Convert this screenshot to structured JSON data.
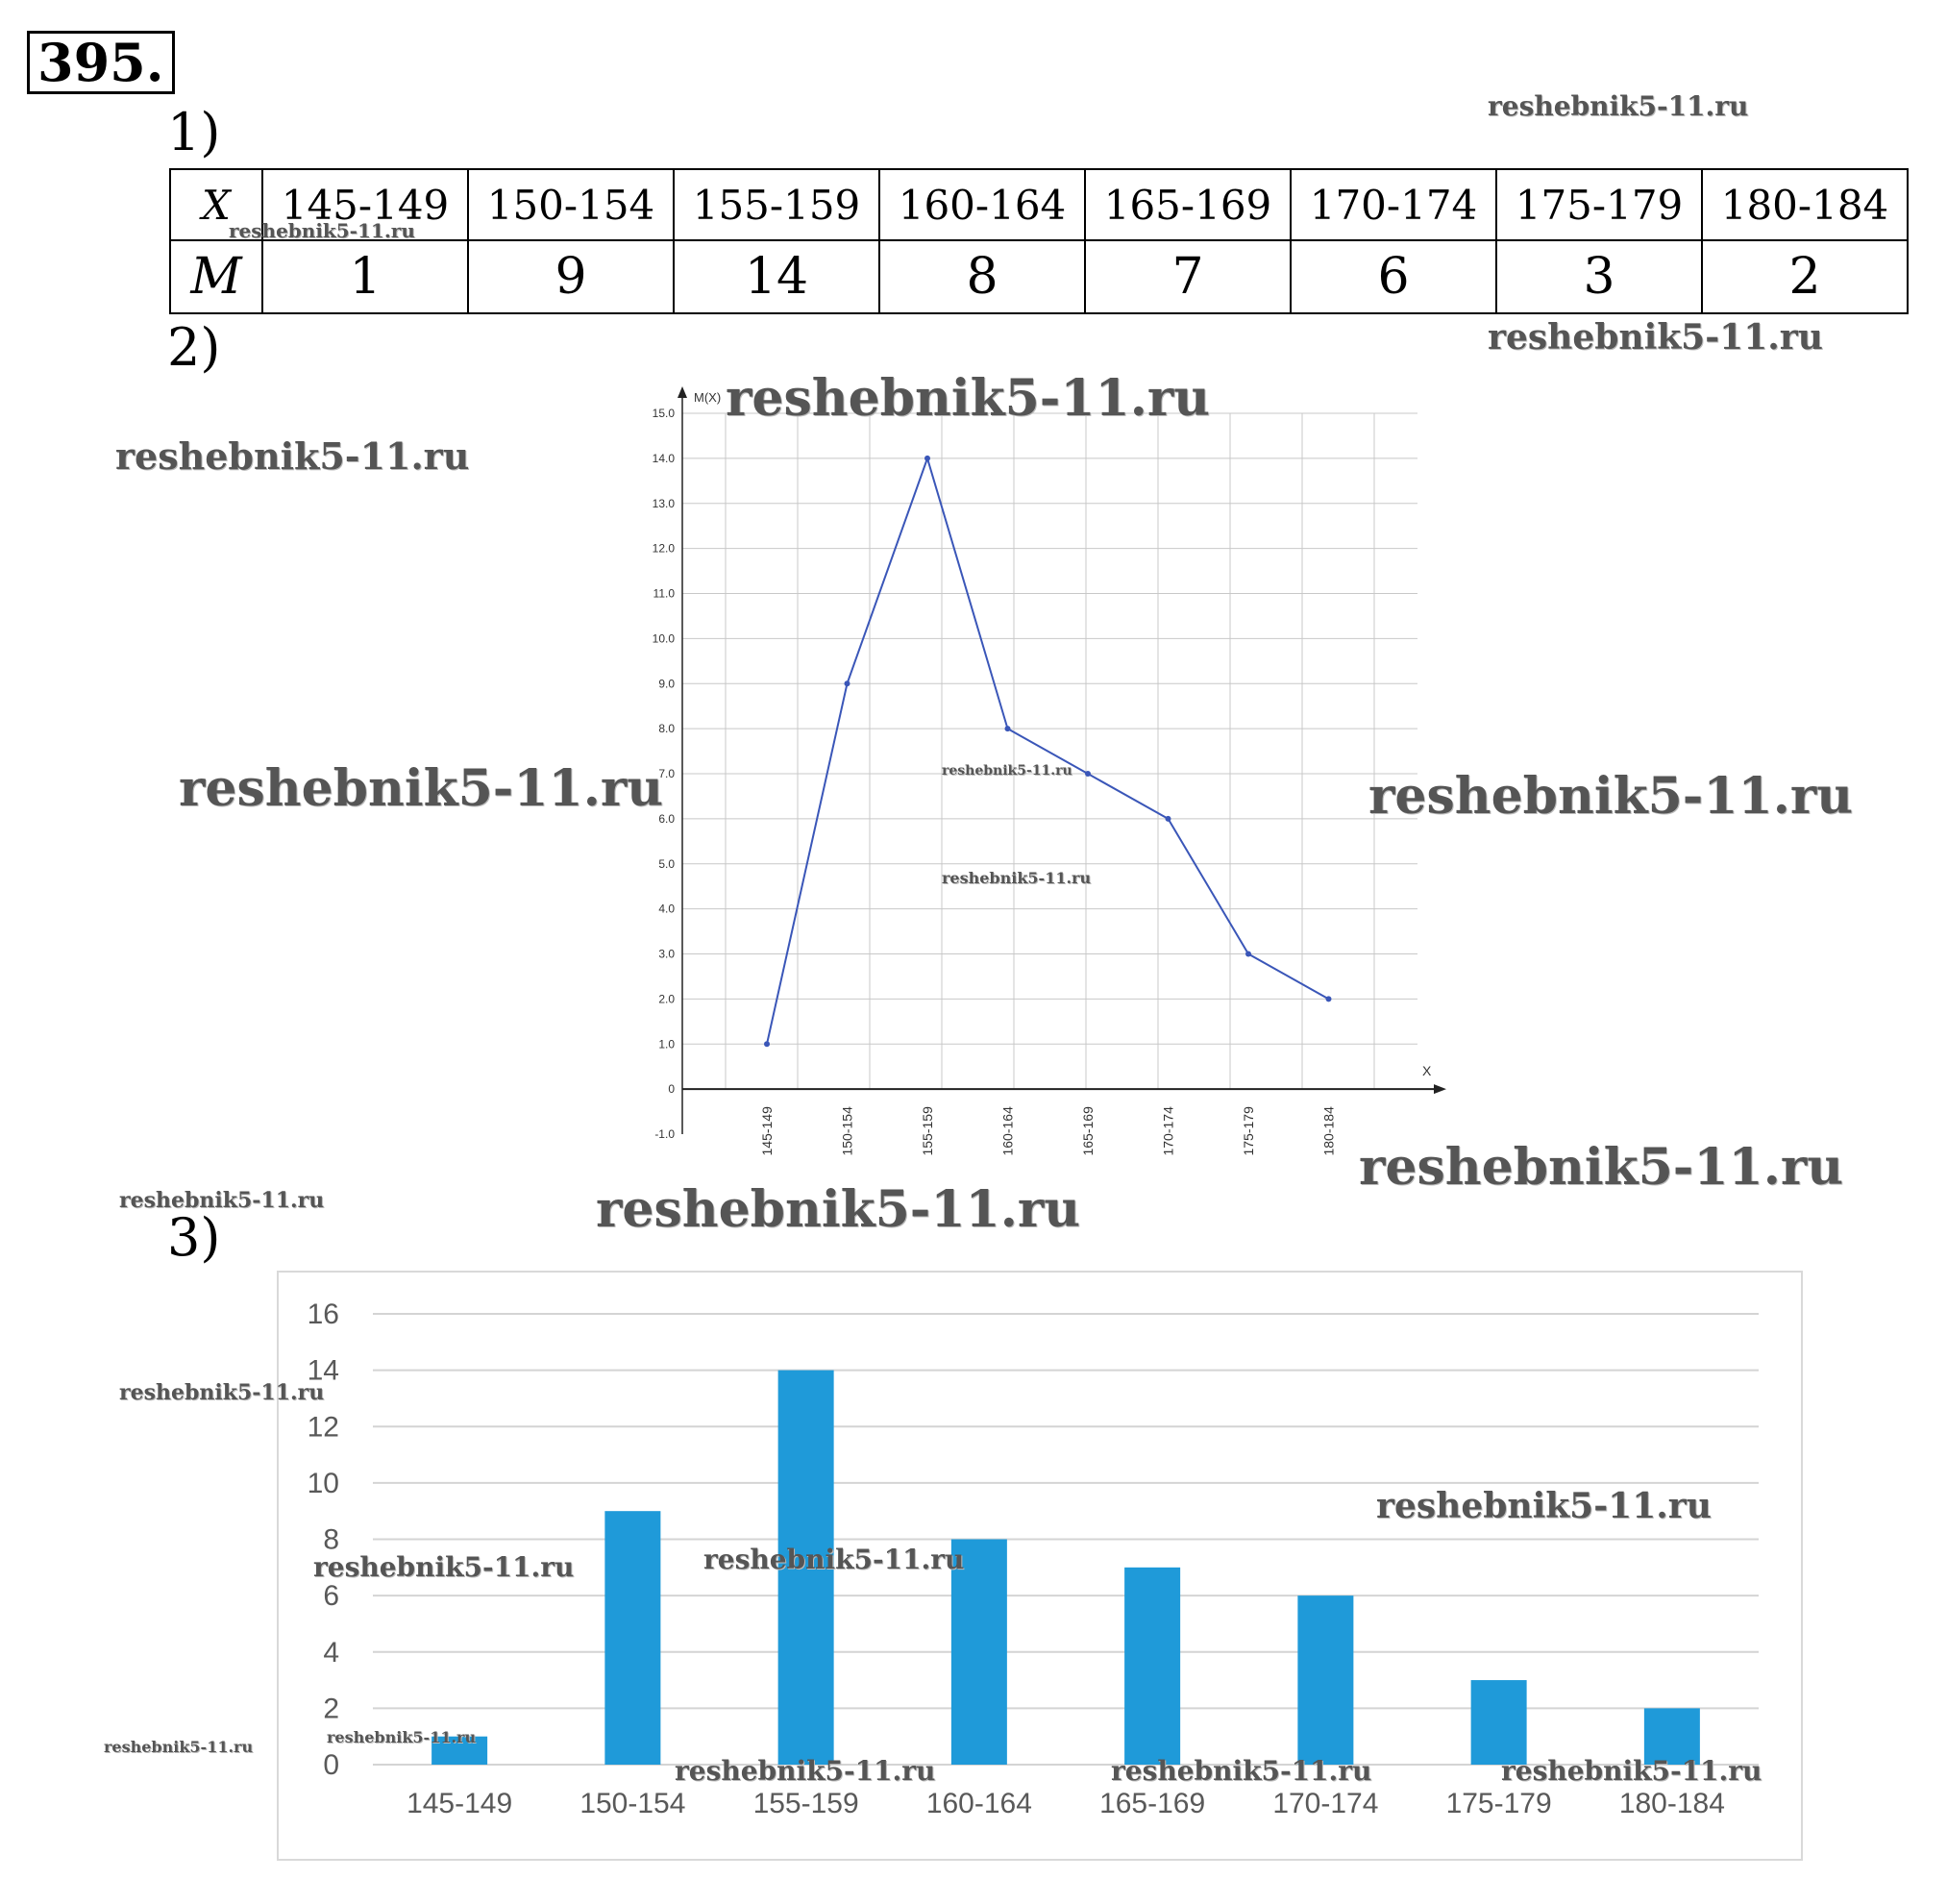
{
  "problem": {
    "number": "395."
  },
  "parts": {
    "p1": "1)",
    "p2": "2)",
    "p3": "3)"
  },
  "table": {
    "row_labels": [
      "X",
      "M"
    ],
    "x_values": [
      "145-149",
      "150-154",
      "155-159",
      "160-164",
      "165-169",
      "170-174",
      "175-179",
      "180-184"
    ],
    "m_values": [
      "1",
      "9",
      "14",
      "8",
      "7",
      "6",
      "3",
      "2"
    ]
  },
  "watermark": "reshebnik5-11.ru",
  "chart_data": [
    {
      "type": "line",
      "title": "",
      "xlabel": "X",
      "ylabel": "M(X)",
      "categories": [
        "145-149",
        "150-154",
        "155-159",
        "160-164",
        "165-169",
        "170-174",
        "175-179",
        "180-184"
      ],
      "values": [
        1,
        9,
        14,
        8,
        7,
        6,
        3,
        2
      ],
      "ylim": [
        -1,
        15
      ],
      "y_ticks": [
        "15.0",
        "14.0",
        "13.0",
        "12.0",
        "11.0",
        "10.0",
        "9.0",
        "8.0",
        "7.0",
        "6.0",
        "5.0",
        "4.0",
        "3.0",
        "2.0",
        "1.0",
        "0",
        "-1.0"
      ],
      "grid": true,
      "color": "#3a56b8"
    },
    {
      "type": "bar",
      "title": "",
      "categories": [
        "145-149",
        "150-154",
        "155-159",
        "160-164",
        "165-169",
        "170-174",
        "175-179",
        "180-184"
      ],
      "values": [
        1,
        9,
        14,
        8,
        7,
        6,
        3,
        2
      ],
      "ylim": [
        0,
        16
      ],
      "y_ticks": [
        "16",
        "14",
        "12",
        "10",
        "8",
        "6",
        "4",
        "2",
        "0"
      ],
      "grid": true,
      "color": "#1f9ad9"
    }
  ]
}
